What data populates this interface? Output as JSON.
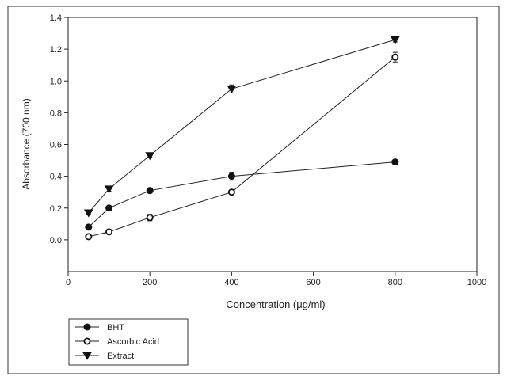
{
  "chart_data": {
    "type": "line",
    "title": "",
    "xlabel": "Concentration (μg/ml)",
    "ylabel": "Absorbance (700 nm)",
    "xlim": [
      0,
      1000
    ],
    "ylim": [
      -0.2,
      1.4
    ],
    "x_ticks": [
      0,
      200,
      400,
      600,
      800,
      1000
    ],
    "y_ticks": [
      0.0,
      0.2,
      0.4,
      0.6,
      0.8,
      1.0,
      1.2,
      1.4
    ],
    "x_tick_labels": [
      "0",
      "200",
      "400",
      "600",
      "800",
      "1000"
    ],
    "y_tick_labels": [
      "0.0",
      "0.2",
      "0.4",
      "0.6",
      "0.8",
      "1.0",
      "1.2",
      "1.4"
    ],
    "grid": false,
    "legend_position": "bottom-left, below plot",
    "x": [
      50,
      100,
      200,
      400,
      800
    ],
    "series": [
      {
        "name": "BHT",
        "marker": "filled-circle",
        "values": [
          0.08,
          0.2,
          0.31,
          0.4,
          0.49
        ],
        "errors": [
          0.005,
          0.01,
          0.015,
          0.025,
          0.01
        ]
      },
      {
        "name": "Ascorbic Acid",
        "marker": "open-circle",
        "values": [
          0.02,
          0.05,
          0.14,
          0.3,
          1.15
        ],
        "errors": [
          0.005,
          0.01,
          0.02,
          0.01,
          0.03
        ]
      },
      {
        "name": "Extract",
        "marker": "filled-triangle-down",
        "values": [
          0.17,
          0.32,
          0.53,
          0.95,
          1.26
        ],
        "errors": [
          0.01,
          0.015,
          0.01,
          0.025,
          0.015
        ]
      }
    ]
  }
}
